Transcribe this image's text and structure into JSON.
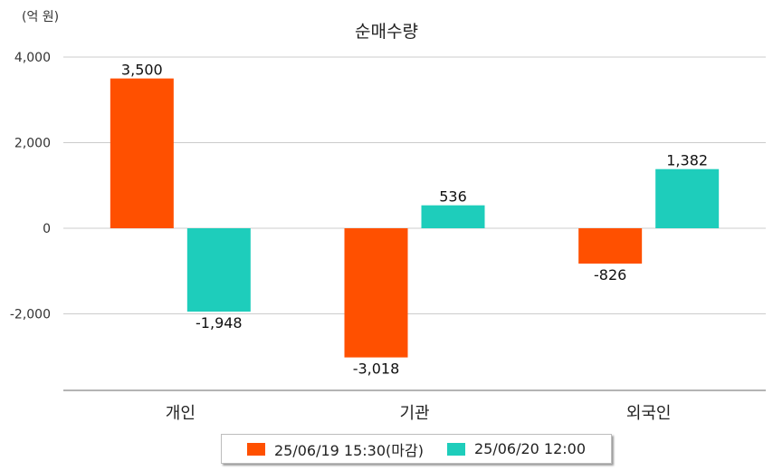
{
  "chart_data": {
    "type": "bar",
    "title": "순매수량",
    "unit_label": "(억 원)",
    "categories": [
      "개인",
      "기관",
      "외국인"
    ],
    "series": [
      {
        "name": "25/06/19 15:30(마감)",
        "color": "#ff5000",
        "values": [
          3500,
          -3018,
          -826
        ],
        "labels": [
          "3,500",
          "-3,018",
          "-826"
        ]
      },
      {
        "name": "25/06/20 12:00",
        "color": "#1ecdbb",
        "values": [
          -1948,
          536,
          1382
        ],
        "labels": [
          "-1,948",
          "536",
          "1,382"
        ]
      }
    ],
    "y_ticks": [
      4000,
      2000,
      0,
      -2000
    ],
    "y_tick_labels": [
      "4,000",
      "2,000",
      "0",
      "-2,000"
    ],
    "ylim": [
      -3800,
      4000
    ],
    "grid": true,
    "legend_position": "bottom"
  }
}
